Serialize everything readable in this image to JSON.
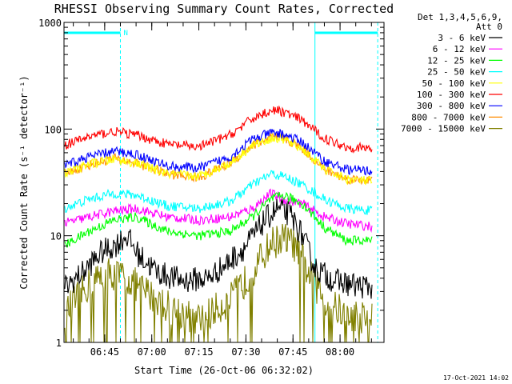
{
  "chart_data": {
    "type": "line",
    "title": "RHESSI Observing Summary Count Rates, Corrected",
    "xlabel": "Start Time (26-Oct-06 06:32:02)",
    "ylabel": "Corrected Count Rate (s⁻¹ detector⁻¹)",
    "y_scale": "log",
    "ylim": [
      1,
      1000
    ],
    "xlim_minutes": [
      "06:32:02",
      "08:14:00"
    ],
    "x_ticks": [
      "06:45",
      "07:00",
      "07:15",
      "07:30",
      "07:45",
      "08:00"
    ],
    "y_ticks": [
      "1",
      "10",
      "100",
      "1000"
    ],
    "legend_header": [
      "Det 1,3,4,5,6,9,",
      "Att 0"
    ],
    "legend_placement": "right",
    "night_marker_label": "N",
    "footer_date": "17-Oct-2021 14:02",
    "series": [
      {
        "name": "3 - 6 keV",
        "color": "#000000",
        "x": [
          "06:32",
          "06:38",
          "06:44",
          "06:48",
          "06:52",
          "06:56",
          "07:02",
          "07:10",
          "07:18",
          "07:24",
          "07:30",
          "07:36",
          "07:40",
          "07:44",
          "07:48",
          "07:52",
          "07:58",
          "08:05",
          "08:12"
        ],
        "values": [
          3.2,
          4.5,
          7.0,
          8.0,
          10.0,
          6.5,
          4.5,
          3.8,
          4.0,
          5.5,
          8.0,
          14.0,
          18.0,
          16.0,
          10.0,
          5.0,
          3.8,
          3.4,
          3.3
        ]
      },
      {
        "name": "6 - 12 keV",
        "color": "#ff00ff",
        "x": [
          "06:32",
          "06:40",
          "06:48",
          "06:55",
          "07:05",
          "07:15",
          "07:25",
          "07:32",
          "07:38",
          "07:42",
          "07:48",
          "07:55",
          "08:02",
          "08:12"
        ],
        "values": [
          13,
          15,
          17,
          18,
          15,
          14,
          15,
          18,
          25,
          22,
          20,
          15,
          13,
          12
        ]
      },
      {
        "name": "12 - 25 keV",
        "color": "#00ff00",
        "x": [
          "06:32",
          "06:40",
          "06:48",
          "06:55",
          "07:05",
          "07:15",
          "07:25",
          "07:32",
          "07:38",
          "07:42",
          "07:48",
          "07:55",
          "08:02",
          "08:12"
        ],
        "values": [
          8,
          11,
          14,
          15,
          11,
          10,
          11,
          15,
          22,
          24,
          20,
          12,
          9,
          9
        ]
      },
      {
        "name": "25 - 50 keV",
        "color": "#00ffff",
        "x": [
          "06:32",
          "06:40",
          "06:48",
          "06:55",
          "07:05",
          "07:15",
          "07:25",
          "07:32",
          "07:38",
          "07:42",
          "07:48",
          "07:55",
          "08:02",
          "08:12"
        ],
        "values": [
          18,
          22,
          25,
          24,
          19,
          18,
          21,
          30,
          38,
          36,
          30,
          22,
          18,
          17
        ]
      },
      {
        "name": "50 - 100 keV",
        "color": "#ffff00",
        "x": [
          "06:32",
          "06:40",
          "06:48",
          "06:55",
          "07:05",
          "07:15",
          "07:25",
          "07:32",
          "07:38",
          "07:42",
          "07:48",
          "07:55",
          "08:02",
          "08:12"
        ],
        "values": [
          38,
          47,
          52,
          48,
          38,
          36,
          48,
          70,
          82,
          80,
          65,
          42,
          34,
          32
        ]
      },
      {
        "name": "100 - 300 keV",
        "color": "#ff0000",
        "x": [
          "06:32",
          "06:40",
          "06:48",
          "06:55",
          "07:05",
          "07:15",
          "07:25",
          "07:32",
          "07:38",
          "07:42",
          "07:48",
          "07:55",
          "08:02",
          "08:12"
        ],
        "values": [
          70,
          85,
          95,
          88,
          72,
          68,
          88,
          125,
          150,
          145,
          120,
          82,
          68,
          65
        ]
      },
      {
        "name": "300 - 800 keV",
        "color": "#0000ff",
        "x": [
          "06:32",
          "06:40",
          "06:48",
          "06:55",
          "07:05",
          "07:15",
          "07:25",
          "07:32",
          "07:38",
          "07:42",
          "07:48",
          "07:55",
          "08:02",
          "08:12"
        ],
        "values": [
          45,
          55,
          62,
          58,
          45,
          43,
          55,
          80,
          92,
          90,
          75,
          50,
          42,
          40
        ]
      },
      {
        "name": "800 - 7000 keV",
        "color": "#ff8c00",
        "x": [
          "06:32",
          "06:40",
          "06:48",
          "06:55",
          "07:05",
          "07:15",
          "07:25",
          "07:32",
          "07:38",
          "07:42",
          "07:48",
          "07:55",
          "08:02",
          "08:12"
        ],
        "values": [
          38,
          46,
          53,
          48,
          38,
          35,
          48,
          70,
          84,
          82,
          66,
          42,
          34,
          33
        ]
      },
      {
        "name": "7000 - 15000 keV",
        "color": "#808000",
        "x": [
          "06:32",
          "06:40",
          "06:46",
          "06:52",
          "06:58",
          "07:05",
          "07:15",
          "07:25",
          "07:32",
          "07:38",
          "07:42",
          "07:46",
          "07:50",
          "07:55",
          "08:02",
          "08:12"
        ],
        "values": [
          1.8,
          3.5,
          4.5,
          4.0,
          3.0,
          2.2,
          1.6,
          2.5,
          4.5,
          8.5,
          9.5,
          8.0,
          4.5,
          2.5,
          1.8,
          1.7
        ]
      }
    ]
  }
}
